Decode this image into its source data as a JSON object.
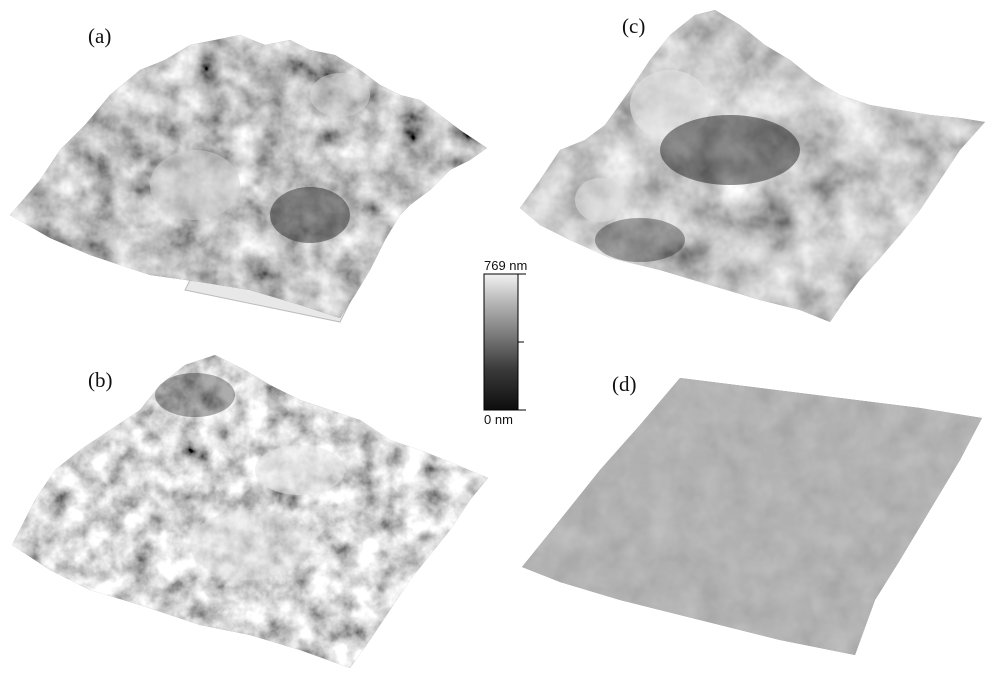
{
  "panels": [
    {
      "label": "(a)"
    },
    {
      "label": "(b)"
    },
    {
      "label": "(c)"
    },
    {
      "label": "(d)"
    }
  ],
  "color_scale": {
    "max_label": "769 nm",
    "min_label": "0 nm",
    "gradient": [
      "#0d0d0d",
      "#3a3a3a",
      "#7a7a7a",
      "#b8b8b8",
      "#f2f2f2"
    ]
  }
}
